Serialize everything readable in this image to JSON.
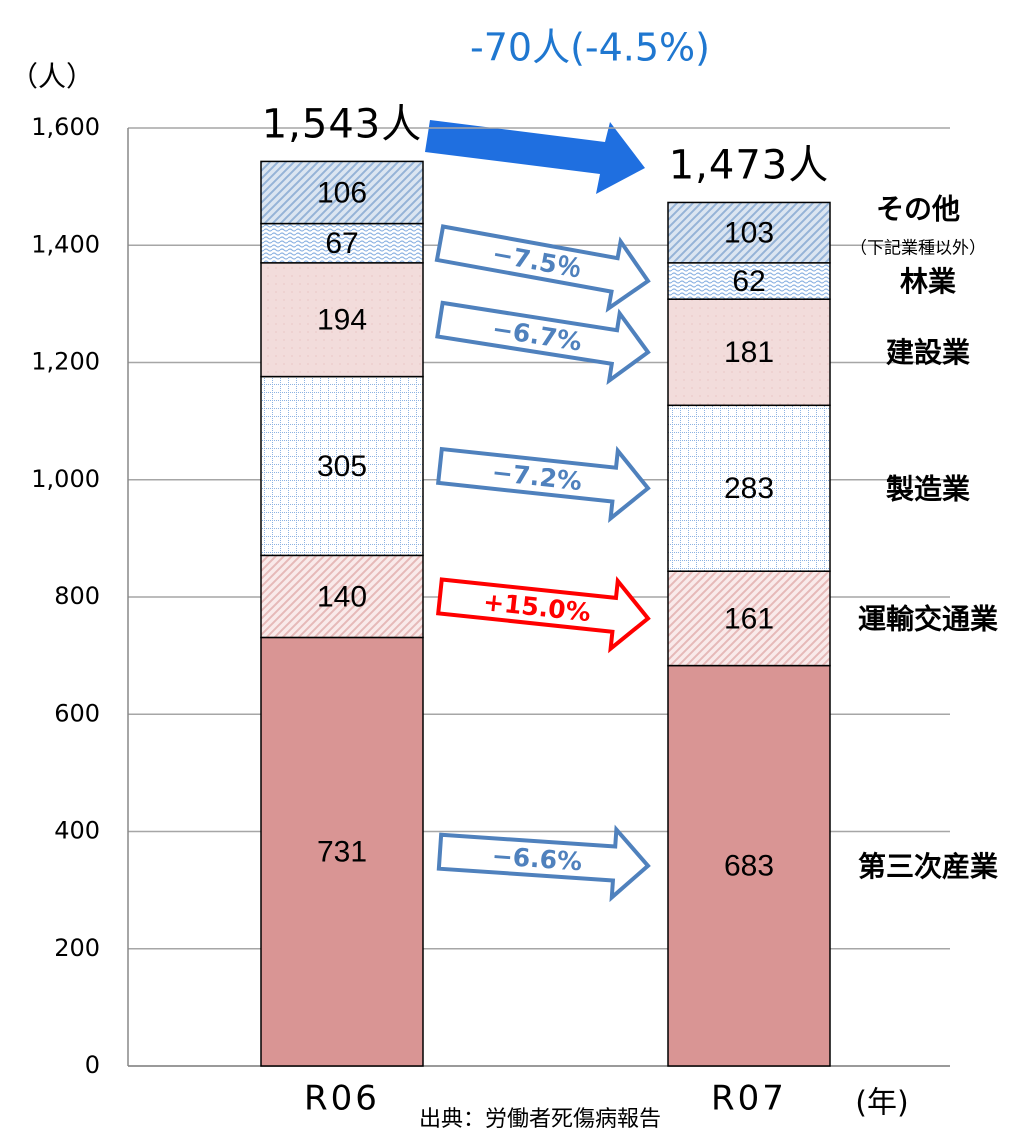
{
  "chart_data": {
    "type": "stacked-bar",
    "title": "-70人(-4.5%)",
    "y_label": "（人）",
    "x_unit": "(年)",
    "source": "出典：労働者死傷病報告",
    "categories": [
      "R06",
      "R07"
    ],
    "totals": [
      "1,543人",
      "1,473人"
    ],
    "ylim": [
      0,
      1600
    ],
    "yticks": [
      0,
      200,
      400,
      600,
      800,
      {
        "value": 1000,
        "label": "1,000"
      },
      {
        "value": 1200,
        "label": "1,200"
      },
      {
        "value": 1400,
        "label": "1,400"
      },
      {
        "value": 1600,
        "label": "1,600"
      }
    ],
    "grid": true,
    "series": [
      {
        "name": "第三次産業",
        "color": "#d99594",
        "pattern": "solid",
        "values": [
          731,
          683
        ],
        "change": "−6.6%",
        "change_color": "#4f81bd"
      },
      {
        "name": "運輸交通業",
        "color": "#e6b9b8",
        "pattern": "hatch",
        "values": [
          140,
          161
        ],
        "change": "+15.0%",
        "change_color": "#ff0000"
      },
      {
        "name": "製造業",
        "color": "#8db3e2",
        "pattern": "grid",
        "values": [
          305,
          283
        ],
        "change": "−7.2%",
        "change_color": "#4f81bd"
      },
      {
        "name": "建設業",
        "color": "#f2dcdb",
        "pattern": "dots",
        "values": [
          194,
          181
        ],
        "change": "−6.7%",
        "change_color": "#4f81bd"
      },
      {
        "name": "林業",
        "color": "#8db3e2",
        "pattern": "wave",
        "values": [
          67,
          62
        ],
        "change": "−7.5％",
        "change_color": "#4f81bd"
      },
      {
        "name": "その他",
        "note": "（下記業種以外）",
        "color": "#95b3d7",
        "pattern": "hatch",
        "values": [
          106,
          103
        ]
      }
    ]
  }
}
